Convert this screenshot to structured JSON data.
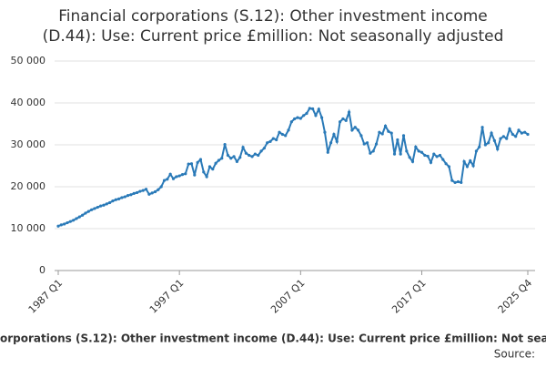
{
  "chart_data": {
    "type": "line",
    "title": [
      "Financial corporations (S.12): Other investment income",
      "(D.44): Use: Current price £million: Not seasonally adjusted"
    ],
    "footer": "orporations (S.12): Other investment income (D.44): Use: Current price £million: Not sea",
    "source": "Source:",
    "categories": [
      "1987 Q1",
      null,
      null,
      null,
      null,
      null,
      null,
      null,
      null,
      null,
      null,
      null,
      null,
      null,
      null,
      null,
      null,
      null,
      null,
      null,
      null,
      null,
      null,
      null,
      null,
      null,
      null,
      null,
      null,
      null,
      null,
      null,
      null,
      null,
      null,
      null,
      null,
      null,
      null,
      null,
      "1997 Q1",
      null,
      null,
      null,
      null,
      null,
      null,
      null,
      null,
      null,
      null,
      null,
      null,
      null,
      null,
      null,
      null,
      null,
      null,
      null,
      null,
      null,
      null,
      null,
      null,
      null,
      null,
      null,
      null,
      null,
      null,
      null,
      null,
      null,
      null,
      null,
      null,
      null,
      null,
      null,
      "2007 Q1",
      null,
      null,
      null,
      null,
      null,
      null,
      null,
      null,
      null,
      null,
      null,
      null,
      null,
      null,
      null,
      null,
      null,
      null,
      null,
      null,
      null,
      null,
      null,
      null,
      null,
      null,
      null,
      null,
      null,
      null,
      null,
      null,
      null,
      null,
      null,
      null,
      null,
      null,
      null,
      "2017 Q1",
      null,
      null,
      null,
      null,
      null,
      null,
      null,
      null,
      null,
      null,
      null,
      null,
      null,
      null,
      null,
      null,
      null,
      null,
      null,
      null,
      null,
      null,
      null,
      null,
      null,
      null,
      null,
      null,
      null,
      null,
      null,
      null,
      null,
      null,
      "2025 Q4"
    ],
    "values": [
      10600,
      10900,
      11100,
      11400,
      11700,
      12000,
      12400,
      12800,
      13200,
      13700,
      14100,
      14500,
      14800,
      15100,
      15400,
      15600,
      15900,
      16200,
      16600,
      16900,
      17100,
      17400,
      17600,
      17900,
      18100,
      18400,
      18600,
      18900,
      19100,
      19400,
      18200,
      18500,
      18800,
      19300,
      20000,
      21500,
      21800,
      23000,
      21900,
      22400,
      22600,
      22900,
      23100,
      25400,
      25500,
      22800,
      25800,
      26500,
      23500,
      22400,
      24800,
      24200,
      25600,
      26300,
      26800,
      30100,
      27500,
      26800,
      27200,
      26000,
      27000,
      29400,
      28000,
      27500,
      27200,
      27800,
      27500,
      28500,
      29200,
      30500,
      30800,
      31500,
      31200,
      33000,
      32500,
      32200,
      33500,
      35500,
      36200,
      36500,
      36300,
      37000,
      37500,
      38700,
      38600,
      37000,
      38500,
      36500,
      33000,
      28200,
      30500,
      32500,
      30800,
      35500,
      36200,
      35800,
      37800,
      33500,
      34200,
      33500,
      32200,
      30200,
      30500,
      28000,
      28500,
      30200,
      33000,
      32600,
      34500,
      33200,
      32800,
      27800,
      31200,
      27800,
      32200,
      28500,
      27000,
      26000,
      29500,
      28500,
      28200,
      27500,
      27300,
      25800,
      27800,
      27200,
      27500,
      26500,
      25500,
      24800,
      21500,
      21000,
      21200,
      21000,
      26000,
      24800,
      26200,
      25000,
      28500,
      29500,
      34200,
      30000,
      30500,
      32800,
      31000,
      29000,
      31500,
      32000,
      31500,
      33800,
      32500,
      32000,
      33500,
      32800,
      33000,
      32500
    ],
    "color": "#2a7ab8",
    "ylim": [
      0,
      50000
    ],
    "yticks": [
      0,
      {
        "value": 10000,
        "label": "10 000"
      },
      {
        "value": 20000,
        "label": "20 000"
      },
      {
        "value": 30000,
        "label": "30 000"
      },
      {
        "value": 40000,
        "label": "40 000"
      },
      {
        "value": 50000,
        "label": "50 000"
      }
    ],
    "grid": true
  }
}
